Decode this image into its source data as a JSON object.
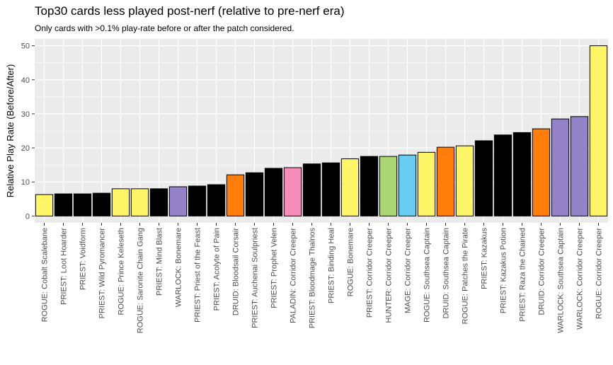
{
  "chart_data": {
    "type": "bar",
    "title": "Top30 cards less played post-nerf (relative to pre-nerf era)",
    "subtitle": "Only cards with >0.1% play-rate before or after the patch considered.",
    "xlabel": "",
    "ylabel": "Relative Play Rate (Before/After)",
    "ylim": [
      -2,
      52
    ],
    "yticks": [
      0,
      10,
      20,
      30,
      40,
      50
    ],
    "grid": true,
    "categories": [
      "ROGUE: Cobalt Scalebane",
      "PRIEST: Loot Hoarder",
      "PRIEST: Voidform",
      "PRIEST: Wild Pyromancer",
      "ROGUE: Prince Keleseth",
      "ROGUE: Saronite Chain Gang",
      "PRIEST: Mind Blast",
      "WARLOCK: Bonemare",
      "PRIEST: Priest of the Feast",
      "PRIEST: Acolyte of Pain",
      "DRUID: Bloodsail Corsair",
      "PRIEST: Auchenai Soulpriest",
      "PRIEST: Prophet Velen",
      "PALADIN: Corridor Creeper",
      "PRIEST: Bloodmage Thalnos",
      "PRIEST: Binding Heal",
      "ROGUE: Bonemare",
      "PRIEST: Corridor Creeper",
      "HUNTER: Corridor Creeper",
      "MAGE: Corridor Creeper",
      "ROGUE: Southsea Captain",
      "DRUID: Southsea Captain",
      "ROGUE: Patches the Pirate",
      "PRIEST: Kazakus",
      "PRIEST: Kazakus Potion",
      "PRIEST: Raza the Chained",
      "DRUID: Corridor Creeper",
      "WARLOCK: Southsea Captain",
      "WARLOCK: Corridor Creeper",
      "ROGUE: Corridor Creeper"
    ],
    "values": [
      6.3,
      6.5,
      6.5,
      6.7,
      8.0,
      8.0,
      8.0,
      8.6,
      8.8,
      9.2,
      12.1,
      12.7,
      14.0,
      14.2,
      15.3,
      15.6,
      16.8,
      17.5,
      17.5,
      17.9,
      18.7,
      20.2,
      20.6,
      22.1,
      23.8,
      24.5,
      25.6,
      28.5,
      29.2,
      50.0
    ],
    "classes": [
      "ROGUE",
      "PRIEST",
      "PRIEST",
      "PRIEST",
      "ROGUE",
      "ROGUE",
      "PRIEST",
      "WARLOCK",
      "PRIEST",
      "PRIEST",
      "DRUID",
      "PRIEST",
      "PRIEST",
      "PALADIN",
      "PRIEST",
      "PRIEST",
      "ROGUE",
      "PRIEST",
      "HUNTER",
      "MAGE",
      "ROGUE",
      "DRUID",
      "ROGUE",
      "PRIEST",
      "PRIEST",
      "PRIEST",
      "DRUID",
      "WARLOCK",
      "WARLOCK",
      "ROGUE"
    ],
    "class_colors": {
      "ROGUE": "#fff569",
      "PRIEST": "#000000",
      "WARLOCK": "#9482c9",
      "DRUID": "#ff7d0a",
      "PALADIN": "#f58cba",
      "HUNTER": "#abd473",
      "MAGE": "#69ccf0"
    }
  }
}
